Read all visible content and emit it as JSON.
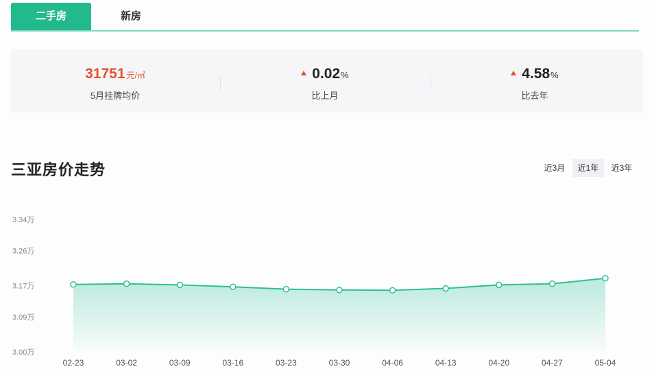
{
  "tabs": [
    {
      "label": "二手房",
      "active": true
    },
    {
      "label": "新房",
      "active": false
    }
  ],
  "stats": {
    "avg_price": {
      "value": "31751",
      "unit": "元/㎡",
      "label": "5月挂牌均价"
    },
    "mom": {
      "value": "0.02",
      "unit": "%",
      "label": "比上月",
      "direction": "up"
    },
    "yoy": {
      "value": "4.58",
      "unit": "%",
      "label": "比去年",
      "direction": "up"
    }
  },
  "chart_title": "三亚房价走势",
  "ranges": [
    {
      "label": "近3月",
      "selected": false
    },
    {
      "label": "近1年",
      "selected": true
    },
    {
      "label": "近3年",
      "selected": false
    }
  ],
  "colors": {
    "accent": "#22b98d",
    "line": "#2ebf97",
    "red": "#e4512c"
  },
  "chart_data": {
    "type": "area",
    "title": "三亚房价走势",
    "xlabel": "",
    "ylabel": "",
    "x": [
      "02-23",
      "03-02",
      "03-09",
      "03-16",
      "03-23",
      "03-30",
      "04-06",
      "04-13",
      "04-20",
      "04-27",
      "05-04"
    ],
    "series": [
      {
        "values": [
          3.173,
          3.175,
          3.172,
          3.167,
          3.161,
          3.159,
          3.158,
          3.163,
          3.172,
          3.175,
          3.189
        ]
      }
    ],
    "y_ticks": [
      3.0,
      3.09,
      3.17,
      3.26,
      3.34
    ],
    "y_tick_labels": [
      "3.00万",
      "3.09万",
      "3.17万",
      "3.26万",
      "3.34万"
    ],
    "ylim": [
      3.0,
      3.34
    ],
    "grid": false,
    "legend": "none"
  }
}
